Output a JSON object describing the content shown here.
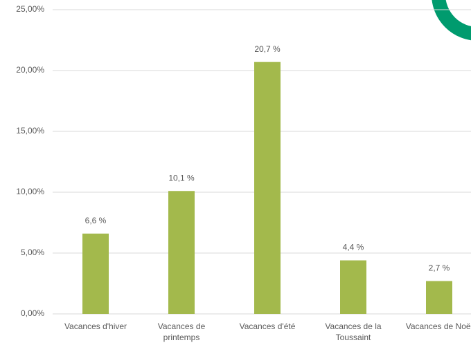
{
  "chart_data": {
    "type": "bar",
    "categories": [
      "Vacances d'hiver",
      "Vacances de printemps",
      "Vacances d'été",
      "Vacances de la Toussaint",
      "Vacances de Noël"
    ],
    "values": [
      6.6,
      10.1,
      20.7,
      4.4,
      2.7
    ],
    "value_labels": [
      "6,6 %",
      "10,1 %",
      "20,7 %",
      "4,4 %",
      "2,7 %"
    ],
    "color": "#a3b94c",
    "ylim": [
      0,
      25
    ],
    "yticks": [
      {
        "value": 0,
        "label": "0,00%"
      },
      {
        "value": 5,
        "label": "5,00%"
      },
      {
        "value": 10,
        "label": "10,00%"
      },
      {
        "value": 15,
        "label": "15,00%"
      },
      {
        "value": 20,
        "label": "20,00%"
      },
      {
        "value": 25,
        "label": "25,00%"
      }
    ],
    "grid": true
  }
}
